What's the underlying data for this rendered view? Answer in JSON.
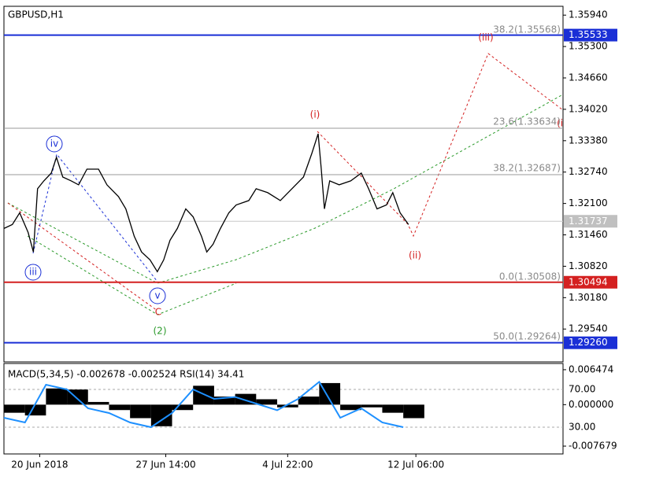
{
  "chart_data": [
    {
      "type": "line",
      "title": "GBPUSD,H1",
      "x": [
        0,
        8,
        15,
        23,
        28,
        32,
        38,
        45,
        50,
        56,
        64,
        71,
        79,
        90,
        98,
        109,
        116,
        124,
        131,
        139,
        146,
        152,
        158,
        165,
        173,
        180,
        188,
        193,
        199,
        206,
        214,
        221,
        233,
        240,
        251,
        263,
        274,
        285,
        293,
        299,
        302,
        305,
        310,
        319,
        330,
        340,
        347,
        355,
        364,
        370,
        377,
        385
      ],
      "series": [
        {
          "color": "#000000",
          "values": [
            1.3159,
            1.3167,
            1.3191,
            1.3151,
            1.3111,
            1.324,
            1.3256,
            1.3272,
            1.3304,
            1.3264,
            1.3256,
            1.3248,
            1.328,
            1.328,
            1.3248,
            1.3224,
            1.3199,
            1.3143,
            1.3111,
            1.3095,
            1.3071,
            1.3095,
            1.3135,
            1.3159,
            1.3199,
            1.3183,
            1.3143,
            1.3111,
            1.3127,
            1.3159,
            1.3191,
            1.3207,
            1.3216,
            1.324,
            1.3232,
            1.3216,
            1.324,
            1.3264,
            1.3312,
            1.3352,
            1.328,
            1.3199,
            1.3256,
            1.3248,
            1.3256,
            1.3272,
            1.324,
            1.3199,
            1.3207,
            1.3232,
            1.3191,
            1.3167
          ]
        }
      ],
      "xlim": [
        0,
        532
      ],
      "xticks": [
        {
          "value": 34,
          "label": "20 Jun 2018"
        },
        {
          "value": 154,
          "label": "27 Jun 14:00"
        },
        {
          "value": 270,
          "label": "4 Jul 22:00"
        },
        {
          "value": 392,
          "label": "12 Jul 06:00"
        }
      ],
      "ylim": [
        1.2887,
        1.3612
      ],
      "yticks": [
        {
          "value": 1.3594,
          "label": "1.35940"
        },
        {
          "value": 1.353,
          "label": "1.35300"
        },
        {
          "value": 1.3466,
          "label": "1.34660"
        },
        {
          "value": 1.3402,
          "label": "1.34020"
        },
        {
          "value": 1.3338,
          "label": "1.33380"
        },
        {
          "value": 1.3274,
          "label": "1.32740"
        },
        {
          "value": 1.321,
          "label": "1.32100"
        },
        {
          "value": 1.3146,
          "label": "1.31460"
        },
        {
          "value": 1.3082,
          "label": "1.30820"
        },
        {
          "value": 1.3018,
          "label": "1.30180"
        },
        {
          "value": 1.2954,
          "label": "1.29540"
        }
      ],
      "levels": [
        {
          "value": 1.35533,
          "color": "#1a2fd6",
          "tag": "#1a2fd6"
        },
        {
          "value": 1.33634,
          "color": "#9a9a9a"
        },
        {
          "value": 1.32687,
          "color": "#9a9a9a"
        },
        {
          "value": 1.31737,
          "color": "#c8c8c8",
          "tag": "#c0c0c0"
        },
        {
          "value": 1.30494,
          "color": "#d42020",
          "tag": "#d42020"
        },
        {
          "value": {
            "value": 1.2926,
            "label": "1.29260"
          },
          "color": "#1a2fd6",
          "tag": "#1a2fd6"
        }
      ],
      "fib_labels": [
        "38.2(1.35568)",
        "23.6(1.33634)",
        "38.2(1.32687)",
        "0.0(1.30508)",
        "50.0(1.29264)"
      ],
      "wave_labels": [
        {
          "text": "iv",
          "color": "#1a2fd6"
        },
        {
          "text": "iii",
          "color": "#1a2fd6"
        },
        {
          "text": "v",
          "color": "#1a2fd6"
        },
        {
          "text": "C",
          "color": "#d42020"
        },
        {
          "text": "(2)",
          "color": "#2a9a2a"
        },
        {
          "text": "(i)",
          "color": "#d42020"
        },
        {
          "text": "(ii)",
          "color": "#d42020"
        },
        {
          "text": "(iii)",
          "color": "#d42020"
        },
        {
          "text": "(iv)",
          "color": "#d42020"
        }
      ]
    },
    {
      "type": "macd",
      "title": "MACD(5,34,5) -0.002678 -0.002524 RSI(14) 34.41",
      "x": [
        0,
        20,
        40,
        60,
        80,
        100,
        120,
        140,
        160,
        180,
        200,
        220,
        240,
        260,
        280,
        300,
        320,
        340,
        360,
        380
      ],
      "series": [
        {
          "color": "#000000",
          "values": [
            -0.0015,
            -0.002,
            0.003,
            0.0028,
            0.0005,
            -0.001,
            -0.0025,
            -0.004,
            -0.001,
            0.0035,
            0.0015,
            0.002,
            0.001,
            -0.0005,
            0.0015,
            0.004,
            -0.001,
            -0.0005,
            -0.0015,
            -0.0025
          ]
        },
        {
          "color": "#1e90ff",
          "axis": "y2",
          "values": [
            40,
            35,
            75,
            70,
            50,
            45,
            35,
            30,
            45,
            70,
            60,
            62,
            55,
            48,
            60,
            78,
            40,
            50,
            35,
            30
          ]
        }
      ],
      "xlim": [
        0,
        532
      ],
      "ylim": [
        -0.00913,
        0.00763
      ],
      "yticks": [
        {
          "value": 0.006474,
          "label": "0.006474"
        },
        {
          "value": 0,
          "label": "0.000000"
        },
        {
          "value": -0.007679,
          "label": "-0.007679"
        }
      ],
      "y2lim": [
        1.7,
        97.5
      ],
      "y2ticks": [
        {
          "value": 70,
          "label": "70.00"
        },
        {
          "value": 30,
          "label": "30.00"
        }
      ]
    }
  ]
}
